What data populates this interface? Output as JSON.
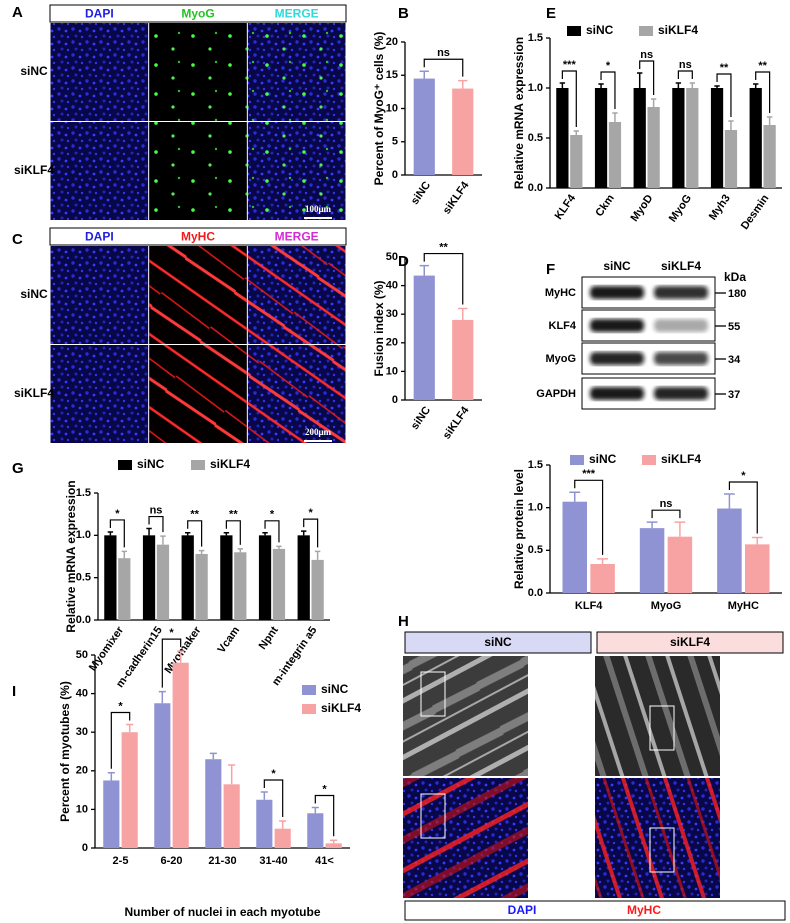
{
  "image_panels": [
    {
      "label": "A",
      "columns": [
        "DAPI",
        "MyoG",
        "MERGE"
      ],
      "column_colors": [
        "#1f1fe0",
        "#22c322",
        "#2fd9d9"
      ],
      "rows": [
        "siNC",
        "siKLF4"
      ],
      "scale_bar": "100μm"
    },
    {
      "label": "C",
      "columns": [
        "DAPI",
        "MyHC",
        "MERGE"
      ],
      "column_colors": [
        "#1f1fe0",
        "#ee1c1c",
        "#d62ad6"
      ],
      "rows": [
        "siNC",
        "siKLF4"
      ],
      "scale_bar": "200μm"
    }
  ],
  "western_blot": {
    "label": "F",
    "columns": [
      "siNC",
      "siKLF4"
    ],
    "unit": "kDa",
    "bands": [
      {
        "protein": "MyHC",
        "kda": 180
      },
      {
        "protein": "KLF4",
        "kda": 55
      },
      {
        "protein": "MyoG",
        "kda": 34
      },
      {
        "protein": "GAPDH",
        "kda": 37
      }
    ]
  },
  "myotube_images": {
    "label": "H",
    "groups": [
      "siNC",
      "siKLF4"
    ],
    "stains": [
      "DAPI",
      "MyHC"
    ],
    "stain_colors": [
      "#1a1aff",
      "#ff1a1a"
    ]
  },
  "chart_data": [
    {
      "label": "B",
      "type": "bar",
      "ylabel": "Percent of MyoG⁺ cells (%)",
      "categories": [
        "siNC",
        "siKLF4"
      ],
      "values": [
        14.5,
        13
      ],
      "errors": [
        1.1,
        1.2
      ],
      "colors": [
        "#8f93d3",
        "#f7a3a3"
      ],
      "ylim": [
        0,
        20
      ],
      "yticks": [
        0,
        5,
        10,
        15,
        20
      ],
      "annotations": [
        {
          "text": "ns"
        }
      ]
    },
    {
      "label": "D",
      "type": "bar",
      "ylabel": "Fusion index (%)",
      "categories": [
        "siNC",
        "siKLF4"
      ],
      "values": [
        43.5,
        28
      ],
      "errors": [
        3.5,
        4
      ],
      "colors": [
        "#8f93d3",
        "#f7a3a3"
      ],
      "ylim": [
        0,
        50
      ],
      "yticks": [
        0,
        10,
        20,
        30,
        40,
        50
      ],
      "annotations": [
        {
          "text": "**"
        }
      ]
    },
    {
      "label": "E",
      "type": "grouped_bar",
      "ylabel": "Relative mRNA expression",
      "categories": [
        "KLF4",
        "Ckm",
        "MyoD",
        "MyoG",
        "Myh3",
        "Desmin"
      ],
      "series": [
        {
          "name": "siNC",
          "color": "#000000",
          "values": [
            1,
            1,
            1,
            1,
            1,
            1
          ],
          "errors": [
            0.05,
            0.04,
            0.15,
            0.05,
            0.02,
            0.04
          ]
        },
        {
          "name": "siKLF4",
          "color": "#a6a6a6",
          "values": [
            0.53,
            0.66,
            0.81,
            1.0,
            0.58,
            0.63
          ],
          "errors": [
            0.04,
            0.09,
            0.08,
            0.05,
            0.09,
            0.08
          ]
        }
      ],
      "ylim": [
        0,
        1.5
      ],
      "yticks": [
        {
          "value": 0,
          "label": "0.0"
        },
        0.5,
        {
          "value": 1,
          "label": "1.0"
        },
        1.5
      ],
      "annotations": [
        {
          "index": 0,
          "text": "***"
        },
        {
          "index": 1,
          "text": "*"
        },
        {
          "index": 2,
          "text": "ns"
        },
        {
          "index": 3,
          "text": "ns"
        },
        {
          "index": 4,
          "text": "**"
        },
        {
          "index": 5,
          "text": "**"
        }
      ]
    },
    {
      "type": "grouped_bar",
      "ylabel": "Relative protein level",
      "categories": [
        "KLF4",
        "MyoG",
        "MyHC"
      ],
      "series": [
        {
          "name": "siNC",
          "color": "#8f93d3",
          "values": [
            1.07,
            0.76,
            0.99
          ],
          "errors": [
            0.11,
            0.07,
            0.17
          ]
        },
        {
          "name": "siKLF4",
          "color": "#f7a3a3",
          "values": [
            0.34,
            0.66,
            0.57
          ],
          "errors": [
            0.06,
            0.17,
            0.08
          ]
        }
      ],
      "ylim": [
        0,
        1.5
      ],
      "yticks": [
        {
          "value": 0,
          "label": "0.0"
        },
        0.5,
        {
          "value": 1,
          "label": "1.0"
        },
        1.5
      ],
      "annotations": [
        {
          "index": 0,
          "text": "***"
        },
        {
          "index": 1,
          "text": "ns"
        },
        {
          "index": 2,
          "text": "*"
        }
      ]
    },
    {
      "label": "G",
      "type": "grouped_bar",
      "ylabel": "Relative mRNA expression",
      "categories": [
        "Myomixer",
        "m-cadherin15",
        "Myomaker",
        "Vcam",
        "Npnt",
        "m-integrin a5"
      ],
      "series": [
        {
          "name": "siNC",
          "color": "#000000",
          "values": [
            1,
            1,
            1,
            1,
            1,
            1
          ],
          "errors": [
            0.04,
            0.08,
            0.03,
            0.03,
            0.03,
            0.05
          ]
        },
        {
          "name": "siKLF4",
          "color": "#a6a6a6",
          "values": [
            0.73,
            0.89,
            0.78,
            0.8,
            0.84,
            0.71
          ],
          "errors": [
            0.08,
            0.1,
            0.04,
            0.04,
            0.03,
            0.1
          ]
        }
      ],
      "ylim": [
        0,
        1.5
      ],
      "yticks": [
        {
          "value": 0,
          "label": "0.0"
        },
        0.5,
        {
          "value": 1,
          "label": "1.0"
        },
        1.5
      ],
      "annotations": [
        {
          "index": 0,
          "text": "*"
        },
        {
          "index": 1,
          "text": "ns"
        },
        {
          "index": 2,
          "text": "**"
        },
        {
          "index": 3,
          "text": "**"
        },
        {
          "index": 4,
          "text": "*"
        },
        {
          "index": 5,
          "text": "*"
        }
      ]
    },
    {
      "label": "I",
      "type": "grouped_bar",
      "ylabel": "Percent of myotubes (%)",
      "xlabel": "Number of nuclei in each myotube",
      "categories": [
        "2-5",
        "6-20",
        "21-30",
        "31-40",
        "41<"
      ],
      "series": [
        {
          "name": "siNC",
          "color": "#8f93d3",
          "values": [
            17.5,
            37.5,
            23,
            12.5,
            9
          ],
          "errors": [
            2,
            3,
            1.5,
            2,
            1.5
          ]
        },
        {
          "name": "siKLF4",
          "color": "#f7a3a3",
          "values": [
            30,
            48,
            16.5,
            5,
            1.2
          ],
          "errors": [
            2,
            3,
            5,
            2,
            0.8
          ]
        }
      ],
      "ylim": [
        0,
        50
      ],
      "yticks": [
        0,
        10,
        20,
        30,
        40,
        50
      ],
      "annotations": [
        {
          "index": 0,
          "text": "*"
        },
        {
          "index": 1,
          "text": "*"
        },
        {
          "index": 3,
          "text": "*"
        },
        {
          "index": 4,
          "text": "*"
        }
      ]
    }
  ]
}
